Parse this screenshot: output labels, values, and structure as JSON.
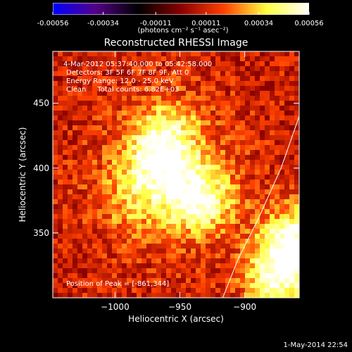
{
  "colorbar": {
    "ticks": [
      "-0.00056",
      "-0.00034",
      "-0.00011",
      "0.00011",
      "0.00034",
      "0.00056"
    ],
    "units_label": "(photons cm⁻² s⁻¹ asec⁻²)",
    "colors": [
      "#0000ff",
      "#550088",
      "#000000",
      "#880000",
      "#ff4000",
      "#ffff40",
      "#ffffff"
    ]
  },
  "title": "Reconstructed RHESSI Image",
  "annotations": {
    "time_range": "4-Mar-2012 05:37:40.000 to 05:42:58.000",
    "detectors": "Detectors: 3F 5F 6F 7F 8F 9F, Att 0",
    "energy": "Energy Range: 12.0 - 25.0 keV",
    "clean": "Clean     Total counts: 6.82E+03",
    "peak": "Position of Peak = [-861,344]"
  },
  "footer": "1-May-2014 22:54",
  "chart_data": {
    "type": "heatmap",
    "title": "Reconstructed RHESSI Image",
    "xlabel": "Heliocentric X (arcsec)",
    "ylabel": "Heliocentric Y (arcsec)",
    "xlim": [
      -1048,
      -858
    ],
    "ylim": [
      300,
      490
    ],
    "x_ticks": [
      -1000,
      -950,
      -900
    ],
    "y_ticks": [
      350,
      400,
      450
    ],
    "color_range": [
      -0.00056,
      0.00056
    ],
    "peak_position": [
      -861,
      344
    ],
    "sources": [
      {
        "x": -965,
        "y": 405,
        "value": 0.00045
      },
      {
        "x": -935,
        "y": 376,
        "value": 0.00048
      },
      {
        "x": -861,
        "y": 344,
        "value": 0.00056
      },
      {
        "x": -875,
        "y": 315,
        "value": 0.0005
      },
      {
        "x": -960,
        "y": 430,
        "value": 0.0003
      },
      {
        "x": -985,
        "y": 375,
        "value": 0.00025
      }
    ],
    "limb_curve": [
      [
        -917,
        300
      ],
      [
        -905,
        330
      ],
      [
        -890,
        360
      ],
      [
        -872,
        400
      ],
      [
        -858,
        440
      ]
    ],
    "grid": false
  }
}
